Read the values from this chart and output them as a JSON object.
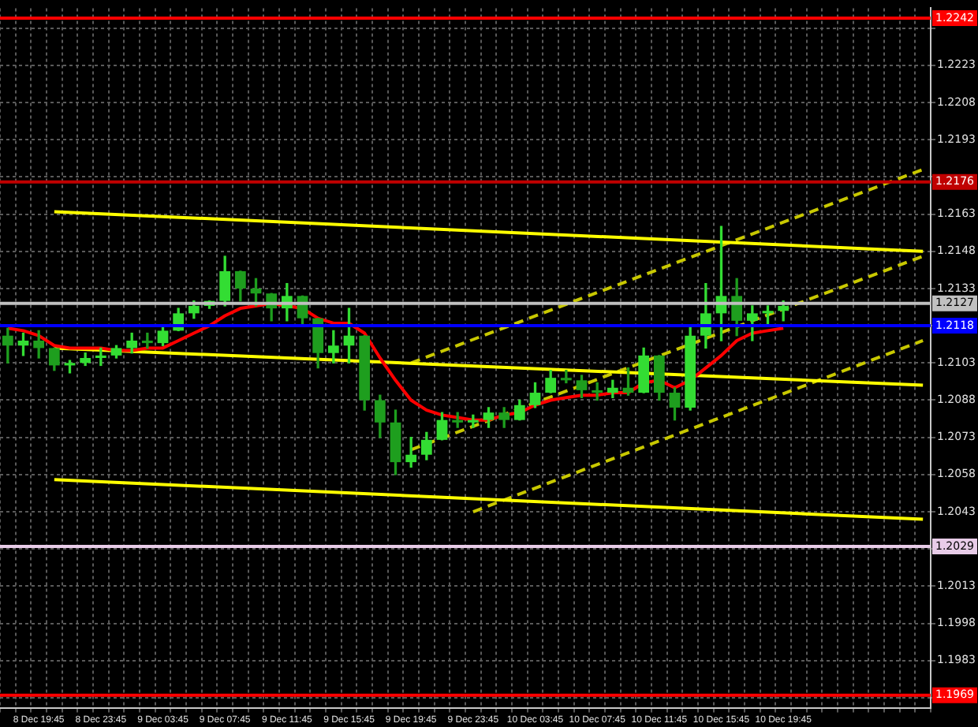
{
  "chart_data": {
    "type": "candlestick",
    "categories": [
      null,
      null,
      "8 Dec 19:45",
      null,
      null,
      null,
      "8 Dec 23:45",
      null,
      null,
      null,
      "9 Dec 03:45",
      null,
      null,
      null,
      "9 Dec 07:45",
      null,
      null,
      null,
      "9 Dec 11:45",
      null,
      null,
      null,
      "9 Dec 15:45",
      null,
      null,
      null,
      "9 Dec 19:45",
      null,
      null,
      null,
      "9 Dec 23:45",
      null,
      null,
      null,
      "10 Dec 03:45",
      null,
      null,
      null,
      "10 Dec 07:45",
      null,
      null,
      null,
      "10 Dec 11:45",
      null,
      null,
      null,
      "10 Dec 15:45",
      null,
      null,
      null,
      "10 Dec 19:45",
      null,
      null,
      null,
      null,
      null,
      null,
      null,
      null,
      null
    ],
    "series": [
      {
        "colors": [
          "#1e9e1e",
          "#33dd33",
          "#1e9e1e",
          "#1e9e1e",
          "#33dd33",
          "#33dd33",
          "#33dd33",
          "#33dd33",
          "#33dd33",
          "#1e9e1e",
          "#33dd33",
          "#33dd33",
          "#33dd33",
          "#33dd33",
          "#33dd33",
          "#1e9e1e",
          "#1e9e1e",
          "#1e9e1e",
          "#33dd33",
          "#1e9e1e",
          "#1e9e1e",
          "#33dd33",
          "#33dd33",
          "#1e9e1e",
          "#1e9e1e",
          "#1e9e1e",
          "#33dd33",
          "#33dd33",
          "#33dd33",
          "#1e9e1e",
          "#33dd33",
          "#33dd33",
          "#1e9e1e",
          "#33dd33",
          "#33dd33",
          "#33dd33",
          "#1e9e1e",
          "#1e9e1e",
          "#1e9e1e",
          "#33dd33",
          "#1e9e1e",
          "#33dd33",
          "#1e9e1e",
          "#1e9e1e",
          "#33dd33",
          "#33dd33",
          "#33dd33",
          "#1e9e1e",
          "#33dd33",
          "#33dd33",
          "#33dd33",
          null,
          null,
          null,
          null,
          null,
          null,
          null,
          null,
          null
        ],
        "ohlc": [
          [
            1.2114,
            1.2117,
            1.2103,
            1.211
          ],
          [
            1.211,
            1.2115,
            1.2106,
            1.2112
          ],
          [
            1.2112,
            1.2116,
            1.2105,
            1.2109
          ],
          [
            1.2109,
            1.2109,
            1.21,
            1.2102
          ],
          [
            1.2102,
            1.2104,
            1.2099,
            1.2103
          ],
          [
            1.2103,
            1.2107,
            1.2102,
            1.2105
          ],
          [
            1.2105,
            1.2109,
            1.2102,
            1.2106
          ],
          [
            1.2106,
            1.211,
            1.2105,
            1.2109
          ],
          [
            1.2109,
            1.2115,
            1.2107,
            1.2112
          ],
          [
            1.2112,
            1.2115,
            1.2109,
            1.2111
          ],
          [
            1.2111,
            1.2118,
            1.211,
            1.2116
          ],
          [
            1.2116,
            1.2125,
            1.2116,
            1.2123
          ],
          [
            1.2123,
            1.2128,
            1.2121,
            1.2126
          ],
          [
            1.2126,
            1.2128,
            1.2125,
            1.2128
          ],
          [
            1.2128,
            1.2146,
            1.2126,
            1.214
          ],
          [
            1.214,
            1.214,
            1.2128,
            1.2133
          ],
          [
            1.2133,
            1.2137,
            1.2126,
            1.2131
          ],
          [
            1.2131,
            1.2131,
            1.212,
            1.2125
          ],
          [
            1.2125,
            1.2135,
            1.212,
            1.213
          ],
          [
            1.213,
            1.213,
            1.2118,
            1.2121
          ],
          [
            1.2121,
            1.2121,
            1.2101,
            1.2107
          ],
          [
            1.2107,
            1.2116,
            1.2103,
            1.211
          ],
          [
            1.211,
            1.2125,
            1.2103,
            1.2114
          ],
          [
            1.2114,
            1.2114,
            1.2084,
            1.2088
          ],
          [
            1.2088,
            1.209,
            1.2073,
            1.2079
          ],
          [
            1.2079,
            1.2084,
            1.2058,
            1.2063
          ],
          [
            1.2063,
            1.2073,
            1.2061,
            1.2066
          ],
          [
            1.2066,
            1.2075,
            1.2064,
            1.2072
          ],
          [
            1.2072,
            1.2083,
            1.2072,
            1.208
          ],
          [
            1.208,
            1.2083,
            1.2077,
            1.2079
          ],
          [
            1.2079,
            1.2082,
            1.2077,
            1.208
          ],
          [
            1.208,
            1.2085,
            1.2077,
            1.2083
          ],
          [
            1.2083,
            1.2085,
            1.2077,
            1.208
          ],
          [
            1.208,
            1.2088,
            1.208,
            1.2086
          ],
          [
            1.2086,
            1.2095,
            1.2085,
            1.2091
          ],
          [
            1.2091,
            1.21,
            1.2091,
            1.2097
          ],
          [
            1.2097,
            1.21,
            1.2095,
            1.2096
          ],
          [
            1.2096,
            1.2098,
            1.2089,
            1.2092
          ],
          [
            1.2092,
            1.2095,
            1.2088,
            1.2091
          ],
          [
            1.2091,
            1.2096,
            1.2089,
            1.2093
          ],
          [
            1.2093,
            1.2101,
            1.209,
            1.2091
          ],
          [
            1.2091,
            1.2109,
            1.2091,
            1.2106
          ],
          [
            1.2106,
            1.2106,
            1.2088,
            1.2091
          ],
          [
            1.2091,
            1.2093,
            1.208,
            1.2085
          ],
          [
            1.2085,
            1.2118,
            1.2084,
            1.2114
          ],
          [
            1.2114,
            1.2135,
            1.2109,
            1.2123
          ],
          [
            1.2123,
            1.2158,
            1.2112,
            1.213
          ],
          [
            1.213,
            1.2137,
            1.2114,
            1.212
          ],
          [
            1.212,
            1.2126,
            1.2112,
            1.2123
          ],
          [
            1.2123,
            1.2126,
            1.2118,
            1.2124
          ],
          [
            1.2124,
            1.2128,
            1.212,
            1.2126
          ],
          null,
          null,
          null,
          null,
          null,
          null,
          null,
          null,
          null
        ]
      },
      {
        "type": "line",
        "color": "#ff0000",
        "line_style": "solid",
        "values": [
          1.2117,
          1.2116,
          1.2114,
          1.211,
          1.2109,
          1.2109,
          1.2109,
          1.2108,
          1.2108,
          1.2109,
          1.2109,
          1.2112,
          1.2115,
          1.2118,
          1.2122,
          1.2125,
          1.2126,
          1.2127,
          1.2126,
          1.2125,
          1.2121,
          1.2119,
          1.2119,
          1.2115,
          1.2105,
          1.2096,
          1.2088,
          1.2084,
          1.2082,
          1.2081,
          1.208,
          1.208,
          1.2082,
          1.2083,
          1.2086,
          1.2088,
          1.2089,
          1.209,
          1.209,
          1.2091,
          1.2091,
          1.2095,
          1.2096,
          1.2093,
          1.2096,
          1.2101,
          1.2106,
          1.2112,
          1.2115,
          1.2116,
          1.2117,
          null,
          null,
          null,
          null,
          null,
          null,
          null,
          null,
          null
        ]
      },
      {
        "type": "line",
        "color": "#ffff00",
        "line_style": "solid",
        "values": [
          null,
          null,
          null,
          1.2164,
          null,
          null,
          null,
          null,
          null,
          null,
          null,
          null,
          null,
          null,
          null,
          null,
          null,
          null,
          null,
          null,
          null,
          null,
          null,
          null,
          null,
          null,
          null,
          null,
          null,
          null,
          null,
          null,
          null,
          null,
          null,
          null,
          null,
          null,
          null,
          null,
          null,
          null,
          null,
          null,
          null,
          null,
          null,
          null,
          null,
          null,
          null,
          null,
          null,
          null,
          null,
          null,
          null,
          null,
          null,
          1.2148
        ]
      },
      {
        "type": "line",
        "color": "#ffff00",
        "line_style": "solid",
        "values": [
          null,
          null,
          null,
          1.2109,
          null,
          null,
          null,
          null,
          null,
          null,
          null,
          null,
          null,
          null,
          null,
          null,
          null,
          null,
          null,
          null,
          null,
          null,
          null,
          null,
          null,
          null,
          null,
          null,
          null,
          null,
          null,
          null,
          null,
          null,
          null,
          null,
          null,
          null,
          null,
          null,
          null,
          null,
          null,
          null,
          null,
          null,
          null,
          null,
          null,
          null,
          null,
          null,
          null,
          null,
          null,
          null,
          null,
          null,
          null,
          1.2094
        ]
      },
      {
        "type": "line",
        "color": "#ffff00",
        "line_style": "solid",
        "values": [
          null,
          null,
          null,
          1.2056,
          null,
          null,
          null,
          null,
          null,
          null,
          null,
          null,
          null,
          null,
          null,
          null,
          null,
          null,
          null,
          null,
          null,
          null,
          null,
          null,
          null,
          null,
          null,
          null,
          null,
          null,
          null,
          null,
          null,
          null,
          null,
          null,
          null,
          null,
          null,
          null,
          null,
          null,
          null,
          null,
          null,
          null,
          null,
          null,
          null,
          null,
          null,
          null,
          null,
          null,
          null,
          null,
          null,
          null,
          null,
          1.204
        ]
      },
      {
        "type": "line",
        "color": "#c8c800",
        "line_style": "dashed",
        "values": [
          null,
          null,
          null,
          null,
          null,
          null,
          null,
          null,
          null,
          null,
          null,
          null,
          null,
          null,
          null,
          null,
          null,
          null,
          null,
          null,
          null,
          null,
          null,
          null,
          null,
          null,
          1.2103,
          null,
          null,
          null,
          null,
          null,
          null,
          null,
          null,
          null,
          null,
          null,
          null,
          null,
          null,
          null,
          null,
          null,
          null,
          null,
          null,
          null,
          null,
          null,
          null,
          null,
          null,
          null,
          null,
          null,
          null,
          null,
          null,
          1.2181
        ]
      },
      {
        "type": "line",
        "color": "#c8c800",
        "line_style": "dashed",
        "values": [
          null,
          null,
          null,
          null,
          null,
          null,
          null,
          null,
          null,
          null,
          null,
          null,
          null,
          null,
          null,
          null,
          null,
          null,
          null,
          null,
          null,
          null,
          null,
          null,
          null,
          null,
          1.2068,
          null,
          null,
          null,
          null,
          null,
          null,
          null,
          null,
          null,
          null,
          null,
          null,
          null,
          null,
          null,
          null,
          null,
          null,
          null,
          null,
          null,
          null,
          null,
          null,
          null,
          null,
          null,
          null,
          null,
          null,
          null,
          null,
          1.2146
        ]
      },
      {
        "type": "line",
        "color": "#c8c800",
        "line_style": "dashed",
        "values": [
          null,
          null,
          null,
          null,
          null,
          null,
          null,
          null,
          null,
          null,
          null,
          null,
          null,
          null,
          null,
          null,
          null,
          null,
          null,
          null,
          null,
          null,
          null,
          null,
          null,
          null,
          null,
          null,
          null,
          null,
          1.2043,
          null,
          null,
          null,
          null,
          null,
          null,
          null,
          null,
          null,
          null,
          null,
          null,
          null,
          null,
          null,
          null,
          null,
          null,
          null,
          null,
          null,
          null,
          null,
          null,
          null,
          null,
          null,
          null,
          1.2112
        ]
      }
    ],
    "ylim": [
      1.1964,
      1.2246
    ],
    "yticks": [
      {
        "value": 1.2238,
        "label": null
      },
      1.2223,
      1.2208,
      1.2193,
      {
        "value": 1.2178,
        "label": null
      },
      1.2163,
      1.2148,
      1.2133,
      {
        "value": 1.2118,
        "label": null
      },
      1.2103,
      1.2088,
      1.2073,
      1.2058,
      1.2043,
      {
        "value": 1.2028,
        "label": null
      },
      1.2013,
      1.1998,
      1.1983,
      {
        "value": 1.1968,
        "label": null
      }
    ],
    "ref_lines": [
      {
        "axis": "y",
        "value": 1.2242,
        "label": "1.2242",
        "color": "#ff0000"
      },
      {
        "axis": "y",
        "value": 1.2176,
        "label": "1.2176",
        "color": "#c00000"
      },
      {
        "axis": "y",
        "value": 1.2127,
        "label": "1.2127",
        "color": "#c0c0c0"
      },
      {
        "axis": "y",
        "value": 1.2118,
        "label": "1.2118",
        "color": "#0000ff"
      },
      {
        "axis": "y",
        "value": 1.2029,
        "label": "1.2029",
        "color": "#e8cce8"
      },
      {
        "axis": "y",
        "value": 1.1969,
        "label": "1.1969",
        "color": "#ff0000"
      }
    ],
    "grid": true,
    "legend": false,
    "marker": "none"
  }
}
